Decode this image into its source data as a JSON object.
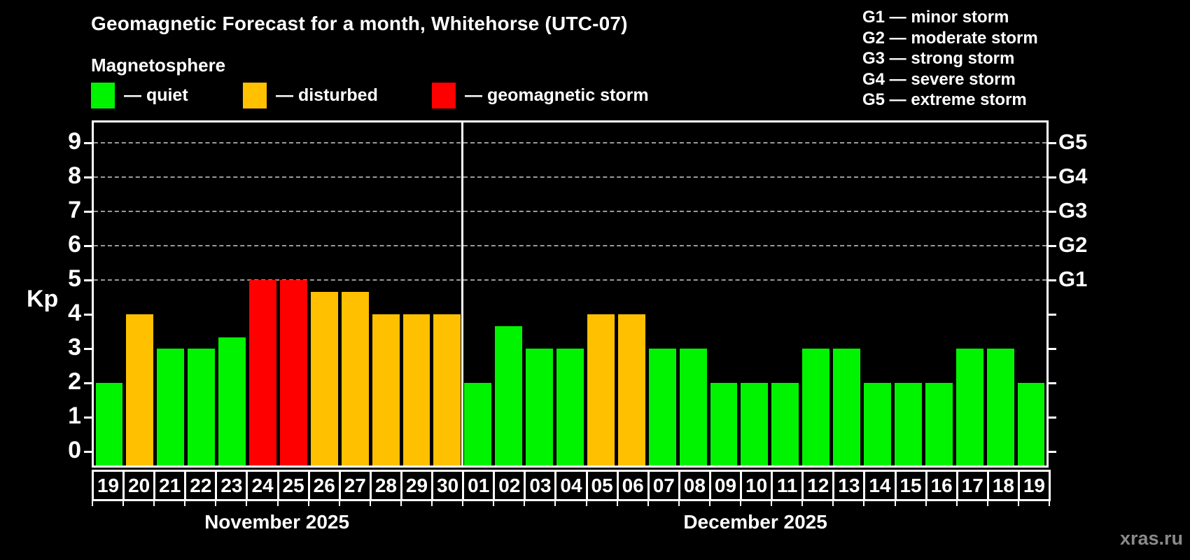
{
  "title": "Geomagnetic Forecast for a month, Whitehorse (UTC-07)",
  "subtitle": "Magnetosphere",
  "legend": {
    "items": [
      {
        "state": "quiet",
        "label": "— quiet",
        "color": "#00f400"
      },
      {
        "state": "disturbed",
        "label": "— disturbed",
        "color": "#ffc000"
      },
      {
        "state": "storm",
        "label": "— geomagnetic storm",
        "color": "#ff0000"
      }
    ]
  },
  "g_scale_legend": [
    "G1 — minor storm",
    "G2 — moderate storm",
    "G3 — strong storm",
    "G4 — severe storm",
    "G5 — extreme storm"
  ],
  "watermark": "xras.ru",
  "chart_data": {
    "type": "bar",
    "ylabel": "Kp",
    "ylim": [
      -0.4,
      9.6
    ],
    "yticks": [
      0,
      1,
      2,
      3,
      4,
      5,
      6,
      7,
      8,
      9
    ],
    "gridlines_at": [
      5,
      6,
      7,
      8,
      9
    ],
    "grid": "dashed",
    "right_axis_labels": [
      {
        "kp": 5,
        "label": "G1"
      },
      {
        "kp": 6,
        "label": "G2"
      },
      {
        "kp": 7,
        "label": "G3"
      },
      {
        "kp": 8,
        "label": "G4"
      },
      {
        "kp": 9,
        "label": "G5"
      }
    ],
    "colors": {
      "quiet": "#00f400",
      "disturbed": "#ffc000",
      "storm": "#ff0000"
    },
    "months": [
      {
        "label": "November 2025",
        "days": [
          {
            "day": "19",
            "kp": 2,
            "state": "quiet"
          },
          {
            "day": "20",
            "kp": 4,
            "state": "disturbed"
          },
          {
            "day": "21",
            "kp": 3,
            "state": "quiet"
          },
          {
            "day": "22",
            "kp": 3,
            "state": "quiet"
          },
          {
            "day": "23",
            "kp": 3.33,
            "state": "quiet"
          },
          {
            "day": "24",
            "kp": 5,
            "state": "storm"
          },
          {
            "day": "25",
            "kp": 5,
            "state": "storm"
          },
          {
            "day": "26",
            "kp": 4.67,
            "state": "disturbed"
          },
          {
            "day": "27",
            "kp": 4.67,
            "state": "disturbed"
          },
          {
            "day": "28",
            "kp": 4,
            "state": "disturbed"
          },
          {
            "day": "29",
            "kp": 4,
            "state": "disturbed"
          },
          {
            "day": "30",
            "kp": 4,
            "state": "disturbed"
          }
        ]
      },
      {
        "label": "December 2025",
        "days": [
          {
            "day": "01",
            "kp": 2,
            "state": "quiet"
          },
          {
            "day": "02",
            "kp": 3.67,
            "state": "quiet"
          },
          {
            "day": "03",
            "kp": 3,
            "state": "quiet"
          },
          {
            "day": "04",
            "kp": 3,
            "state": "quiet"
          },
          {
            "day": "05",
            "kp": 4,
            "state": "disturbed"
          },
          {
            "day": "06",
            "kp": 4,
            "state": "disturbed"
          },
          {
            "day": "07",
            "kp": 3,
            "state": "quiet"
          },
          {
            "day": "08",
            "kp": 3,
            "state": "quiet"
          },
          {
            "day": "09",
            "kp": 2,
            "state": "quiet"
          },
          {
            "day": "10",
            "kp": 2,
            "state": "quiet"
          },
          {
            "day": "11",
            "kp": 2,
            "state": "quiet"
          },
          {
            "day": "12",
            "kp": 3,
            "state": "quiet"
          },
          {
            "day": "13",
            "kp": 3,
            "state": "quiet"
          },
          {
            "day": "14",
            "kp": 2,
            "state": "quiet"
          },
          {
            "day": "15",
            "kp": 2,
            "state": "quiet"
          },
          {
            "day": "16",
            "kp": 2,
            "state": "quiet"
          },
          {
            "day": "17",
            "kp": 3,
            "state": "quiet"
          },
          {
            "day": "18",
            "kp": 3,
            "state": "quiet"
          },
          {
            "day": "19",
            "kp": 2,
            "state": "quiet"
          }
        ]
      }
    ]
  }
}
